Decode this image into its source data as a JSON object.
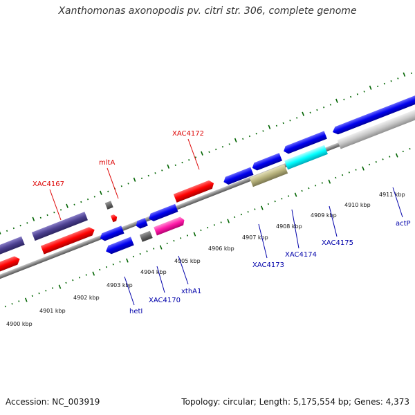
{
  "title": "Xanthomonas axonopodis pv. citri str. 306, complete genome",
  "footer": {
    "accession": "Accession: NC_003919",
    "summary": "Topology: circular; Length: 5,175,554 bp; Genes: 4,373"
  },
  "ruler": [
    "4900 kbp",
    "4901 kbp",
    "4902 kbp",
    "4903 kbp",
    "4904 kbp",
    "4905 kbp",
    "4906 kbp",
    "4907 kbp",
    "4908 kbp",
    "4909 kbp",
    "4910 kbp",
    "4911 kbp"
  ],
  "gene_labels_top": [
    "XAC4167",
    "mltA",
    "XAC4172"
  ],
  "gene_labels_bottom": [
    "hetI",
    "XAC4170",
    "xthA1",
    "XAC4173",
    "XAC4174",
    "XAC4175",
    "actP"
  ],
  "colors": {
    "forward_gene": "#ff0000",
    "reverse_gene": "#0000ee",
    "purple_gene": "#4b3f8f",
    "gray_gene": "#666666",
    "magenta_gene": "#ff1aa8",
    "cyan_gene": "#00ffff",
    "olive_gene": "#b5b07a",
    "lightgray_gene": "#c8c8c8",
    "tick_green": "#006400",
    "label_red": "#dd0000",
    "label_blue": "#0000aa"
  }
}
